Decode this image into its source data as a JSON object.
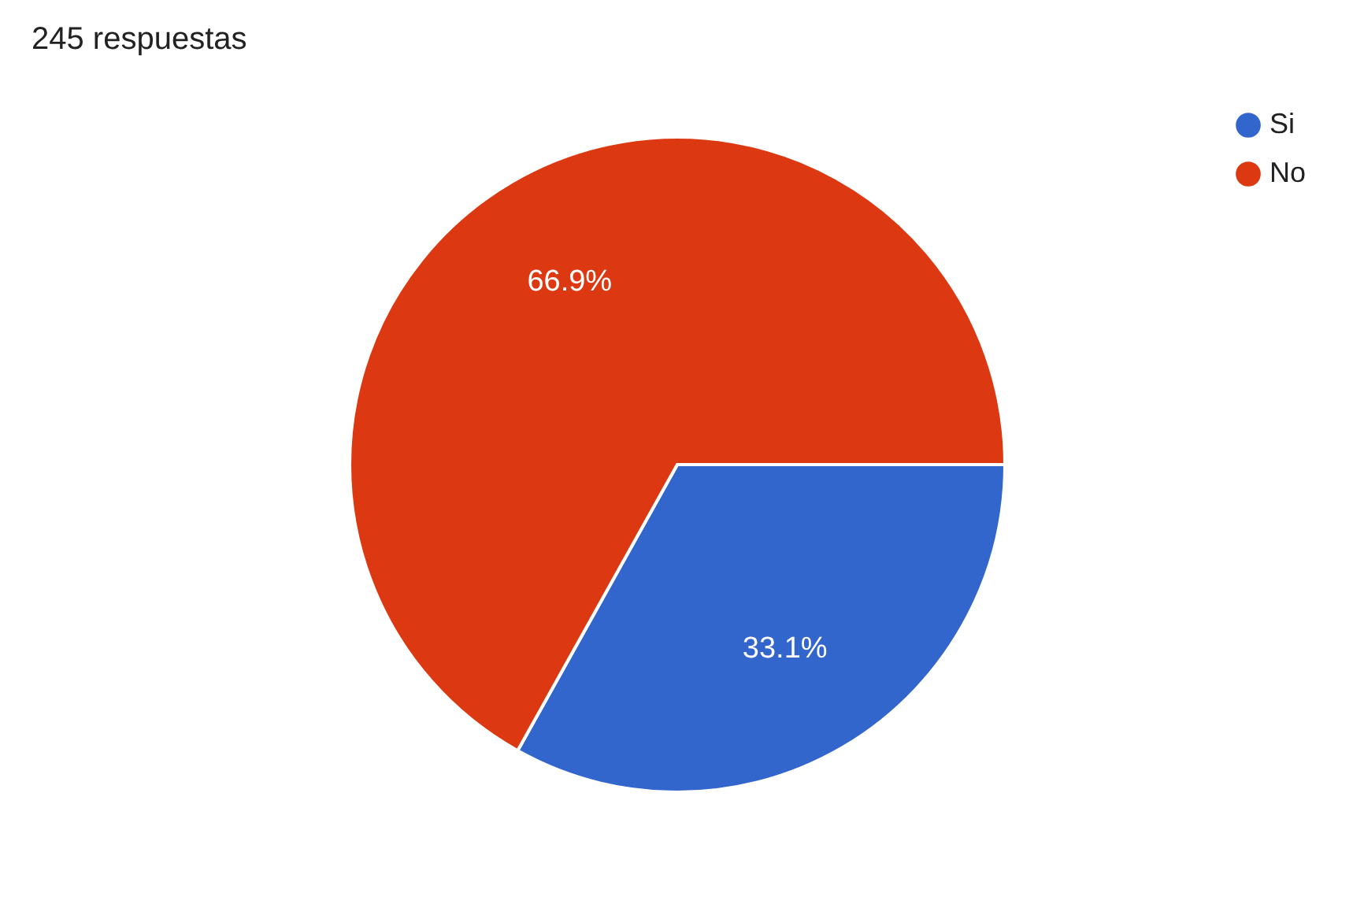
{
  "chart_data": {
    "type": "pie",
    "title": "245 respuestas",
    "categories": [
      "Si",
      "No"
    ],
    "values": [
      33.1,
      66.9
    ],
    "colors": [
      "#3366cc",
      "#dc3912"
    ],
    "value_labels": [
      "33.1%",
      "66.9%"
    ],
    "legend": "top right"
  }
}
